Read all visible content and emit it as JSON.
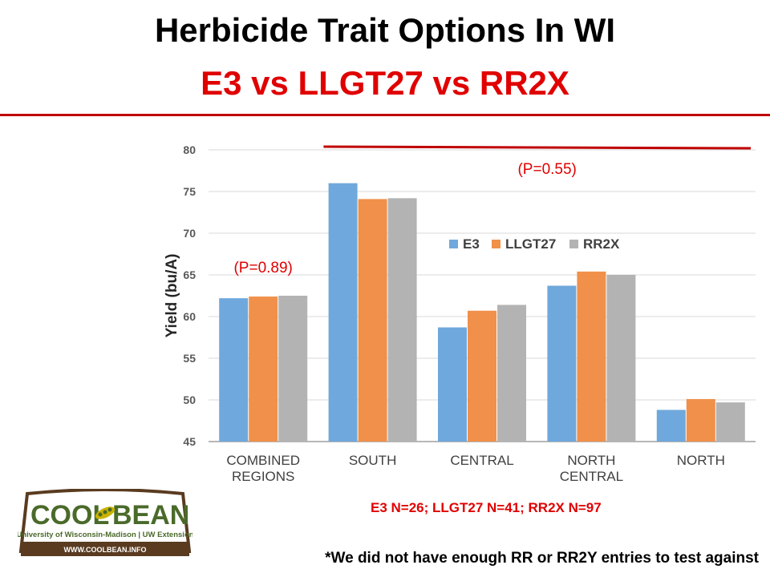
{
  "slide": {
    "title": "Herbicide Trait Options In WI",
    "subtitle": "E3 vs LLGT27 vs RR2X",
    "sample_note": "E3 N=26; LLGT27 N=41; RR2X N=97",
    "footnote": "*We did not have enough RR or RR2Y entries to test against",
    "logo": {
      "word_left": "COOL",
      "word_right": "BEAN",
      "institution": "University of Wisconsin-Madison | UW Extension",
      "url": "WWW.COOLBEAN.INFO"
    }
  },
  "colors": {
    "E3": "#6fa8dc",
    "LLGT27": "#f0904a",
    "RR2X": "#b3b3b3",
    "annotation": "#e00000",
    "logo_green": "#4a6a2a",
    "logo_brown": "#5a3b20"
  },
  "chart_data": {
    "type": "bar",
    "title": "",
    "xlabel": "",
    "ylabel": "Yield (bu/A)",
    "ylim": [
      45,
      80
    ],
    "yticks": [
      "45",
      "50",
      "55",
      "60",
      "65",
      "70",
      "75",
      "80"
    ],
    "grid": true,
    "legend": "top-right",
    "categories": [
      [
        "COMBINED",
        "REGIONS"
      ],
      [
        "SOUTH"
      ],
      [
        "CENTRAL"
      ],
      [
        "NORTH",
        "CENTRAL"
      ],
      [
        "NORTH"
      ]
    ],
    "series": [
      {
        "name": "E3",
        "values": [
          62.2,
          76.0,
          58.7,
          63.7,
          48.8
        ]
      },
      {
        "name": "LLGT27",
        "values": [
          62.4,
          74.1,
          60.7,
          65.4,
          50.1
        ]
      },
      {
        "name": "RR2X",
        "values": [
          62.5,
          74.2,
          61.4,
          65.0,
          49.7
        ]
      }
    ],
    "annotations": [
      {
        "text": "(P=0.89)",
        "category_index": 0
      },
      {
        "text": "(P=0.55)",
        "category_span": [
          1,
          4
        ]
      }
    ]
  }
}
